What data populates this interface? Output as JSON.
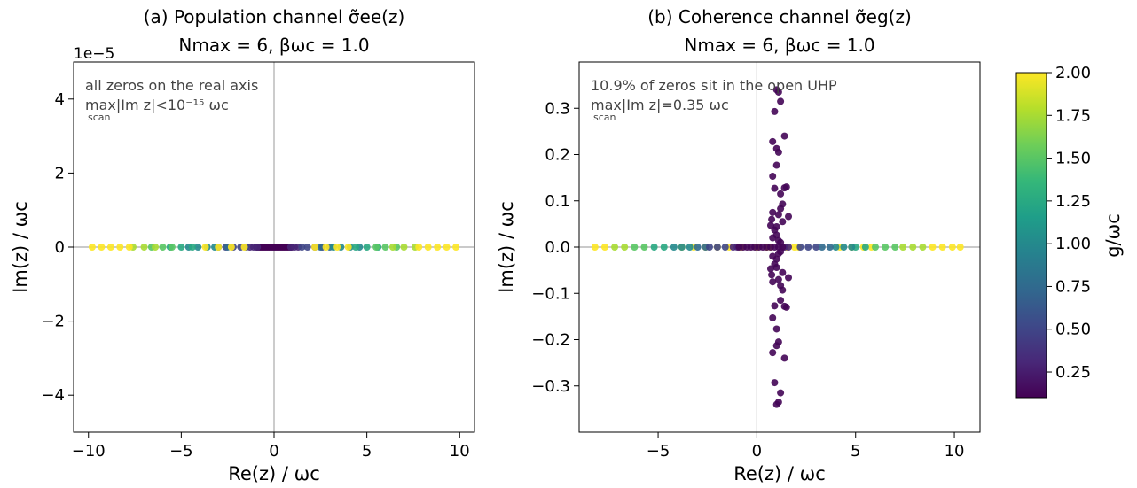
{
  "figure": {
    "panel_a_title_line1": "(a) Population channel σ̃ee(z)",
    "panel_a_title_line2": "Nmax = 6,  βωc = 1.0",
    "panel_b_title_line1": "(b) Coherence channel σ̃eg(z)",
    "panel_b_title_line2": "Nmax = 6,  βωc = 1.0",
    "panel_a_scale_note": "1e−5",
    "panel_a_note_line1": "all zeros on the real axis",
    "panel_a_note_line2": "max|Im z|<10⁻¹⁵ ωc",
    "panel_a_note_sub": "scan",
    "panel_b_note_line1": "10.9% of zeros sit in the open UHP",
    "panel_b_note_line2": "max|Im z|=0.35 ωc",
    "panel_b_note_sub": "scan",
    "colorbar_label": "g/ωc"
  },
  "chart_data": [
    {
      "type": "scatter",
      "title": "(a) Population channel σ̃ee(z) — Nmax = 6, βωc = 1.0",
      "xlabel": "Re(z) / ωc",
      "ylabel": "Im(z) / ωc",
      "xlim": [
        -10.8,
        10.8
      ],
      "ylim": [
        -5,
        5
      ],
      "y_scale_factor": "1e-5",
      "xticks": [
        -10,
        -5,
        0,
        5,
        10
      ],
      "yticks": [
        -4,
        -2,
        0,
        2,
        4
      ],
      "reference_lines": {
        "x": 0,
        "y": 0
      },
      "color_by": "g/ωc",
      "points_description": "zeros lie on Im z = 0, symmetric in Re z; |Re z| grows with g",
      "zeros": [
        {
          "g": 0.1,
          "re": [
            -0.95,
            -0.85,
            -0.75,
            -0.65,
            -0.55,
            -0.45,
            -0.35,
            -0.25,
            -0.15,
            -0.05,
            0.05,
            0.15,
            0.25,
            0.35,
            0.45,
            0.55,
            0.65,
            0.75,
            0.85,
            0.95
          ],
          "im": 0
        },
        {
          "g": 0.3,
          "re": [
            -1.3,
            -1.1,
            -0.9,
            0.9,
            1.1,
            1.3
          ],
          "im": 0
        },
        {
          "g": 0.5,
          "re": [
            -2.6,
            -2.2,
            -1.8,
            -1.5,
            1.5,
            1.8,
            2.2,
            2.6
          ],
          "im": 0
        },
        {
          "g": 0.75,
          "re": [
            -3.0,
            -2.5,
            2.5,
            3.0
          ],
          "im": 0
        },
        {
          "g": 1.0,
          "re": [
            -4.6,
            -4.1,
            -3.6,
            -3.2,
            3.2,
            3.6,
            4.1,
            4.6
          ],
          "im": 0
        },
        {
          "g": 1.25,
          "re": [
            -5.6,
            -5.0,
            -4.4,
            4.4,
            5.0,
            5.6
          ],
          "im": 0
        },
        {
          "g": 1.5,
          "re": [
            -6.6,
            -6.0,
            -5.5,
            5.5,
            6.0,
            6.6
          ],
          "im": 0
        },
        {
          "g": 1.75,
          "re": [
            -7.6,
            -7.0,
            -6.4,
            6.4,
            7.0,
            7.6
          ],
          "im": 0
        },
        {
          "g": 2.0,
          "re": [
            -9.8,
            -9.3,
            -8.8,
            -8.3,
            -7.8,
            -3.7,
            -3.0,
            -2.3,
            -1.6,
            2.2,
            2.8,
            3.4,
            4.0,
            7.8,
            8.3,
            8.8,
            9.3,
            9.8
          ],
          "im": 0
        }
      ]
    },
    {
      "type": "scatter",
      "title": "(b) Coherence channel σ̃eg(z) — Nmax = 6, βωc = 1.0",
      "xlabel": "Re(z) / ωc",
      "ylabel": "Im(z) / ωc",
      "xlim": [
        -9.0,
        11.3
      ],
      "ylim": [
        -0.4,
        0.4
      ],
      "xticks": [
        -5,
        0,
        5,
        10
      ],
      "yticks": [
        -0.3,
        -0.2,
        -0.1,
        0.0,
        0.1,
        0.2,
        0.3
      ],
      "reference_lines": {
        "x": 0,
        "y": 0
      },
      "color_by": "g/ωc",
      "points_description": "most zeros on the real axis; small-g zeros form a vertical column near Re z ≈ 1, symmetric in Im z",
      "off_axis_zeros_g": 0.12,
      "off_axis_zeros_upper": [
        [
          1.0,
          0.34
        ],
        [
          1.1,
          0.335
        ],
        [
          1.2,
          0.315
        ],
        [
          0.9,
          0.293
        ],
        [
          1.4,
          0.24
        ],
        [
          0.8,
          0.228
        ],
        [
          1.0,
          0.213
        ],
        [
          1.1,
          0.205
        ],
        [
          1.0,
          0.177
        ],
        [
          0.8,
          0.153
        ],
        [
          1.5,
          0.13
        ],
        [
          1.4,
          0.128
        ],
        [
          0.9,
          0.127
        ],
        [
          1.2,
          0.115
        ],
        [
          1.3,
          0.093
        ],
        [
          1.2,
          0.083
        ],
        [
          0.8,
          0.075
        ],
        [
          1.1,
          0.07
        ],
        [
          1.6,
          0.066
        ],
        [
          1.3,
          0.055
        ],
        [
          0.7,
          0.047
        ],
        [
          1.0,
          0.044
        ],
        [
          0.9,
          0.037
        ],
        [
          0.8,
          0.02
        ],
        [
          1.1,
          0.014
        ],
        [
          1.2,
          0.01
        ],
        [
          0.75,
          0.06
        ],
        [
          1.0,
          0.026
        ]
      ],
      "zeros_on_axis": [
        {
          "g": 0.12,
          "re": [
            -0.9,
            -0.7,
            -0.5,
            -0.3,
            -0.1,
            0.1,
            0.3,
            0.5,
            0.7,
            0.9,
            1.1,
            1.3
          ]
        },
        {
          "g": 0.3,
          "re": [
            -1.2,
            -1.0,
            1.4,
            1.6
          ]
        },
        {
          "g": 0.5,
          "re": [
            -2.4,
            -2.0,
            -1.6,
            2.2,
            2.6,
            3.0
          ]
        },
        {
          "g": 0.75,
          "re": [
            -3.0,
            -2.6,
            3.3,
            3.7
          ]
        },
        {
          "g": 1.0,
          "re": [
            -4.2,
            -3.8,
            -3.4,
            4.0,
            4.4,
            4.8
          ]
        },
        {
          "g": 1.25,
          "re": [
            -5.2,
            -4.7,
            5.0,
            5.5
          ]
        },
        {
          "g": 1.5,
          "re": [
            -6.2,
            -5.7,
            6.0,
            6.5,
            7.0
          ]
        },
        {
          "g": 1.75,
          "re": [
            -7.2,
            -6.7,
            7.4,
            7.9,
            8.4
          ]
        },
        {
          "g": 2.0,
          "re": [
            -8.2,
            -7.7,
            -3.8,
            -3.2,
            -2.6,
            -2.0,
            -1.4,
            -0.8,
            0.0,
            0.5,
            0.7,
            1.5,
            1.9,
            2.1,
            4.2,
            4.8,
            5.4,
            5.8,
            8.9,
            9.4,
            9.9,
            10.3
          ]
        }
      ]
    },
    {
      "type": "colorbar",
      "label": "g/ωc",
      "range": [
        0.1,
        2.0
      ],
      "colormap": "viridis",
      "ticks": [
        0.25,
        0.5,
        0.75,
        1.0,
        1.25,
        1.5,
        1.75,
        2.0
      ],
      "tick_labels": [
        "0.25",
        "0.50",
        "0.75",
        "1.00",
        "1.25",
        "1.50",
        "1.75",
        "2.00"
      ]
    }
  ],
  "colors": {
    "zero_line": "#aaaaaa",
    "viridis": [
      "#440154",
      "#482878",
      "#3e4989",
      "#31688e",
      "#26828e",
      "#1f9e89",
      "#35b779",
      "#6ece58",
      "#b5de2b",
      "#fde725"
    ]
  }
}
